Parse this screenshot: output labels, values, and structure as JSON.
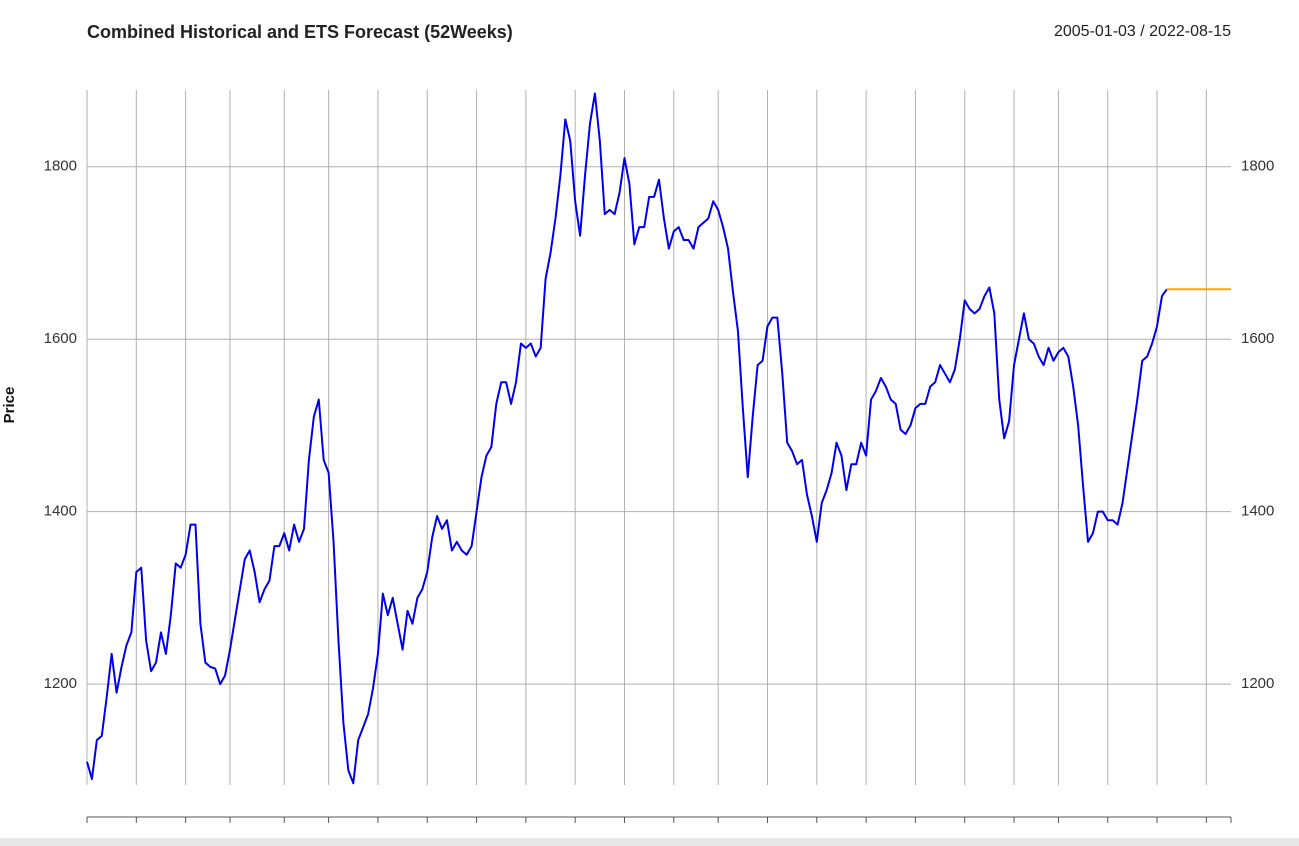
{
  "chart_data": {
    "type": "line",
    "title": "Combined Historical and ETS Forecast (52Weeks)",
    "subtitle": "2005-01-03 / 2022-08-15",
    "y_label": "Price",
    "grid": true,
    "xlim": [
      0,
      232
    ],
    "xticks": [
      0,
      10,
      20,
      29,
      40,
      49,
      59,
      69,
      79,
      89,
      99,
      109,
      119,
      128,
      138,
      148,
      158,
      168,
      178,
      188,
      197,
      207,
      217,
      227
    ],
    "ylim": [
      1083,
      1889
    ],
    "yticks": [
      1200,
      1400,
      1600,
      1800
    ],
    "series": [
      {
        "color": "#0000ee",
        "values": [
          1110,
          1090,
          1135,
          1140,
          1185,
          1235,
          1190,
          1220,
          1245,
          1260,
          1330,
          1335,
          1250,
          1215,
          1225,
          1260,
          1235,
          1280,
          1340,
          1335,
          1350,
          1385,
          1385,
          1270,
          1225,
          1220,
          1218,
          1200,
          1210,
          1240,
          1275,
          1310,
          1345,
          1355,
          1330,
          1295,
          1310,
          1320,
          1360,
          1360,
          1375,
          1355,
          1385,
          1365,
          1380,
          1460,
          1510,
          1530,
          1460,
          1445,
          1365,
          1250,
          1155,
          1100,
          1085,
          1135,
          1150,
          1165,
          1195,
          1235,
          1305,
          1280,
          1300,
          1270,
          1240,
          1285,
          1270,
          1300,
          1310,
          1330,
          1370,
          1395,
          1380,
          1390,
          1355,
          1365,
          1355,
          1350,
          1360,
          1400,
          1440,
          1465,
          1475,
          1525,
          1550,
          1550,
          1525,
          1550,
          1595,
          1590,
          1595,
          1580,
          1590,
          1670,
          1700,
          1740,
          1790,
          1855,
          1830,
          1760,
          1720,
          1790,
          1850,
          1885,
          1830,
          1745,
          1750,
          1745,
          1770,
          1810,
          1780,
          1710,
          1730,
          1730,
          1765,
          1765,
          1785,
          1740,
          1705,
          1725,
          1730,
          1715,
          1715,
          1705,
          1730,
          1735,
          1740,
          1760,
          1750,
          1730,
          1705,
          1655,
          1610,
          1520,
          1440,
          1510,
          1570,
          1575,
          1615,
          1625,
          1625,
          1560,
          1480,
          1470,
          1455,
          1460,
          1420,
          1395,
          1365,
          1410,
          1425,
          1445,
          1480,
          1465,
          1425,
          1455,
          1455,
          1480,
          1465,
          1530,
          1540,
          1555,
          1545,
          1530,
          1525,
          1495,
          1490,
          1500,
          1520,
          1525,
          1525,
          1545,
          1550,
          1570,
          1560,
          1550,
          1565,
          1600,
          1645,
          1635,
          1630,
          1635,
          1650,
          1660,
          1630,
          1530,
          1485,
          1505,
          1570,
          1600,
          1630,
          1600,
          1595,
          1580,
          1570,
          1590,
          1575,
          1585,
          1590,
          1580,
          1545,
          1500,
          1430,
          1365,
          1375,
          1400,
          1400,
          1390,
          1390,
          1385,
          1410,
          1450,
          1490,
          1530,
          1575,
          1580,
          1595,
          1615,
          1650,
          1658,
          null,
          null,
          null,
          null,
          null,
          null,
          null,
          null,
          null,
          null,
          null,
          null,
          null
        ]
      },
      {
        "color": "#ffa500",
        "values": [
          null,
          null,
          null,
          null,
          null,
          null,
          null,
          null,
          null,
          null,
          null,
          null,
          null,
          null,
          null,
          null,
          null,
          null,
          null,
          null,
          null,
          null,
          null,
          null,
          null,
          null,
          null,
          null,
          null,
          null,
          null,
          null,
          null,
          null,
          null,
          null,
          null,
          null,
          null,
          null,
          null,
          null,
          null,
          null,
          null,
          null,
          null,
          null,
          null,
          null,
          null,
          null,
          null,
          null,
          null,
          null,
          null,
          null,
          null,
          null,
          null,
          null,
          null,
          null,
          null,
          null,
          null,
          null,
          null,
          null,
          null,
          null,
          null,
          null,
          null,
          null,
          null,
          null,
          null,
          null,
          null,
          null,
          null,
          null,
          null,
          null,
          null,
          null,
          null,
          null,
          null,
          null,
          null,
          null,
          null,
          null,
          null,
          null,
          null,
          null,
          null,
          null,
          null,
          null,
          null,
          null,
          null,
          null,
          null,
          null,
          null,
          null,
          null,
          null,
          null,
          null,
          null,
          null,
          null,
          null,
          null,
          null,
          null,
          null,
          null,
          null,
          null,
          null,
          null,
          null,
          null,
          null,
          null,
          null,
          null,
          null,
          null,
          null,
          null,
          null,
          null,
          null,
          null,
          null,
          null,
          null,
          null,
          null,
          null,
          null,
          null,
          null,
          null,
          null,
          null,
          null,
          null,
          null,
          null,
          null,
          null,
          null,
          null,
          null,
          null,
          null,
          null,
          null,
          null,
          null,
          null,
          null,
          null,
          null,
          null,
          null,
          null,
          null,
          null,
          null,
          null,
          null,
          null,
          null,
          null,
          null,
          null,
          null,
          null,
          null,
          null,
          null,
          null,
          null,
          null,
          null,
          null,
          null,
          null,
          null,
          null,
          null,
          null,
          null,
          null,
          null,
          null,
          null,
          null,
          null,
          null,
          null,
          null,
          null,
          null,
          null,
          null,
          null,
          null,
          1658,
          1658,
          1658,
          1658,
          1658,
          1658,
          1658,
          1658,
          1658,
          1658,
          1658,
          1658,
          1658,
          1658
        ]
      }
    ]
  }
}
